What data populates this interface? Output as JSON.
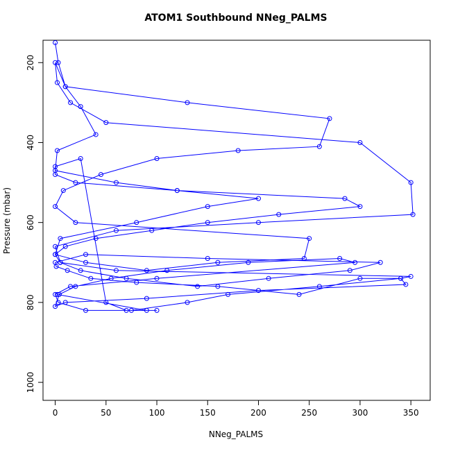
{
  "chart_data": {
    "type": "line",
    "title": "ATOM1 Southbound NNeg_PALMS",
    "x_label": "NNeg_PALMS",
    "y_label": "Pressure (mbar)",
    "color": "#0000ff",
    "markers": true,
    "y_inverted": true,
    "x": [
      0,
      3,
      10,
      25,
      40,
      2,
      0,
      60,
      120,
      200,
      150,
      80,
      5,
      0,
      30,
      90,
      160,
      245,
      250,
      20,
      0,
      8,
      45,
      100,
      180,
      260,
      270,
      130,
      10,
      0,
      2,
      15,
      50,
      300,
      350,
      352,
      200,
      60,
      0,
      5,
      25,
      70,
      140,
      210,
      290,
      320,
      150,
      30,
      0,
      1,
      12,
      35,
      80,
      160,
      240,
      300,
      340,
      345,
      200,
      90,
      10,
      0,
      4,
      20,
      55,
      110,
      190,
      280,
      295,
      100,
      15,
      0,
      3,
      30,
      75,
      130,
      170,
      260,
      340,
      350,
      60,
      5,
      0,
      10,
      40,
      95,
      150,
      220,
      300,
      285,
      120,
      20,
      0,
      0,
      25,
      50,
      70,
      100,
      90,
      2
    ],
    "values": [
      150,
      200,
      260,
      310,
      380,
      420,
      470,
      500,
      520,
      540,
      560,
      600,
      640,
      680,
      700,
      720,
      700,
      690,
      640,
      600,
      560,
      520,
      480,
      440,
      420,
      410,
      340,
      300,
      260,
      200,
      250,
      300,
      350,
      400,
      500,
      580,
      600,
      620,
      660,
      700,
      720,
      740,
      760,
      740,
      720,
      700,
      690,
      680,
      700,
      710,
      720,
      740,
      750,
      760,
      780,
      740,
      740,
      755,
      770,
      790,
      800,
      810,
      780,
      760,
      740,
      720,
      700,
      690,
      700,
      740,
      760,
      780,
      800,
      820,
      820,
      800,
      780,
      760,
      740,
      735,
      720,
      700,
      680,
      660,
      640,
      620,
      600,
      580,
      560,
      540,
      520,
      500,
      480,
      460,
      440,
      800,
      820,
      820,
      820,
      780
    ],
    "xlim": [
      -12,
      369
    ],
    "ylim": [
      1045,
      144
    ],
    "xticks": [
      0,
      50,
      100,
      150,
      200,
      250,
      300,
      350
    ],
    "yticks": [
      200,
      400,
      600,
      800,
      1000
    ]
  }
}
